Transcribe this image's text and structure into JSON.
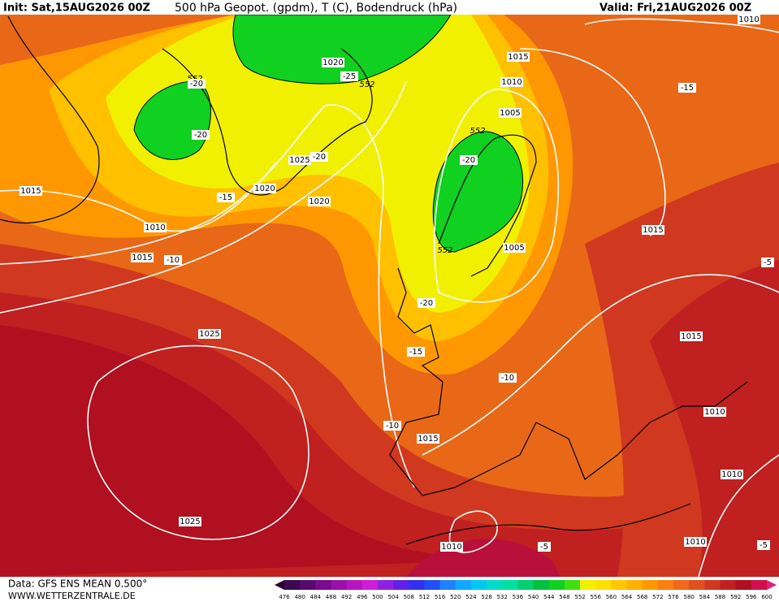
{
  "header": {
    "init": "Init: Sat,15AUG2026 00Z",
    "title": "500 hPa Geopot. (gpdm), T (C), Bodendruck (hPa)",
    "valid": "Valid: Fri,21AUG2026 00Z"
  },
  "map_labels": [
    1010,
    1015,
    1010,
    -15,
    1005,
    552,
    -20,
    1020,
    -25,
    552,
    552,
    -20,
    -20,
    1025,
    -20,
    1020,
    -15,
    1020,
    1015,
    1010,
    1015,
    -10,
    1015,
    1005,
    552,
    -20,
    -5,
    1015,
    1025,
    -15,
    -10,
    1010,
    -10,
    1015,
    1010,
    1025,
    1010,
    1010,
    -5,
    -5
  ],
  "footer": {
    "data": "Data: GFS ENS MEAN 0.500°",
    "site": "WWW.WETTERZENTRALE.DE"
  },
  "colorbar": {
    "levels": [
      476,
      480,
      484,
      488,
      492,
      496,
      500,
      504,
      508,
      512,
      516,
      520,
      524,
      528,
      532,
      536,
      540,
      544,
      548,
      552,
      556,
      560,
      564,
      568,
      572,
      576,
      580,
      584,
      588,
      592,
      596,
      600
    ],
    "colors": [
      "#3c0a4e",
      "#5a0a6e",
      "#7a0a8e",
      "#9a10a8",
      "#b814c0",
      "#d01cd8",
      "#9020e0",
      "#6020e8",
      "#3030f0",
      "#2050f8",
      "#2080ff",
      "#10a8ff",
      "#00c8f0",
      "#00dcc8",
      "#00e0a0",
      "#00d070",
      "#00c040",
      "#10d020",
      "#40e010",
      "#f0f000",
      "#ffe000",
      "#ffc800",
      "#ffb000",
      "#ff9800",
      "#f88010",
      "#f06818",
      "#e05020",
      "#d03820",
      "#c02020",
      "#b01020",
      "#d0104a"
    ]
  }
}
